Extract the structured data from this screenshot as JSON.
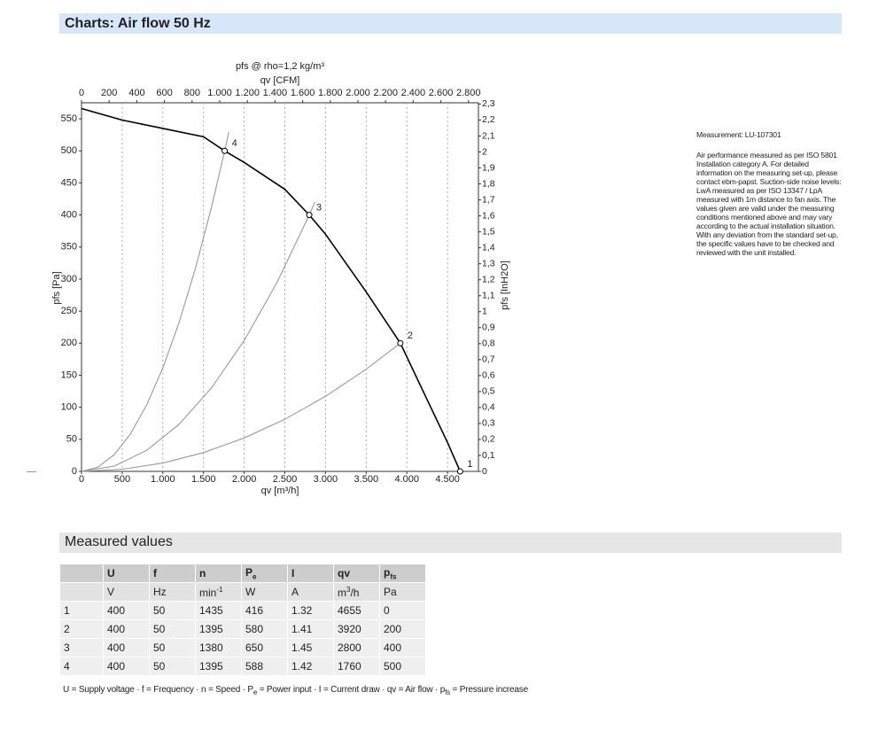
{
  "header": {
    "title": "Charts: Air flow 50 Hz"
  },
  "chart_data": {
    "type": "line",
    "title": "pfs @ rho=1,2 kg/m³",
    "x_label": "qv [m³/h]",
    "x2_label": "qv [CFM]",
    "y_label": "pfs [Pa]",
    "y2_label": "pfs [InH2O]",
    "xlim": [
      0,
      4880
    ],
    "x2lim": [
      0,
      2872
    ],
    "ylim": [
      0,
      575
    ],
    "y2lim": [
      0,
      2.308
    ],
    "xticks": [
      0,
      500,
      {
        "value": 1000,
        "label": "1.000"
      },
      {
        "value": 1500,
        "label": "1.500"
      },
      {
        "value": 2000,
        "label": "2.000"
      },
      {
        "value": 2500,
        "label": "2.500"
      },
      {
        "value": 3000,
        "label": "3.000"
      },
      {
        "value": 3500,
        "label": "3.500"
      },
      {
        "value": 4000,
        "label": "4.000"
      },
      {
        "value": 4500,
        "label": "4.500"
      }
    ],
    "x2ticks": [
      0,
      200,
      400,
      600,
      800,
      {
        "value": 1000,
        "label": "1.000"
      },
      {
        "value": 1200,
        "label": "1.200"
      },
      {
        "value": 1400,
        "label": "1.400"
      },
      {
        "value": 1600,
        "label": "1.600"
      },
      {
        "value": 1800,
        "label": "1.800"
      },
      {
        "value": 2000,
        "label": "2.000"
      },
      {
        "value": 2200,
        "label": "2.200"
      },
      {
        "value": 2400,
        "label": "2.400"
      },
      {
        "value": 2600,
        "label": "2.600"
      },
      {
        "value": 2800,
        "label": "2.800"
      }
    ],
    "yticks": [
      0,
      50,
      100,
      150,
      200,
      250,
      300,
      350,
      400,
      450,
      500,
      550
    ],
    "y2ticks": [
      0,
      {
        "value": 0.1,
        "label": "0,1"
      },
      {
        "value": 0.2,
        "label": "0,2"
      },
      {
        "value": 0.3,
        "label": "0,3"
      },
      {
        "value": 0.4,
        "label": "0,4"
      },
      {
        "value": 0.5,
        "label": "0,5"
      },
      {
        "value": 0.6,
        "label": "0,6"
      },
      {
        "value": 0.7,
        "label": "0,7"
      },
      {
        "value": 0.8,
        "label": "0,8"
      },
      {
        "value": 0.9,
        "label": "0,9"
      },
      1,
      {
        "value": 1.1,
        "label": "1,1"
      },
      {
        "value": 1.2,
        "label": "1,2"
      },
      {
        "value": 1.3,
        "label": "1,3"
      },
      {
        "value": 1.4,
        "label": "1,4"
      },
      {
        "value": 1.5,
        "label": "1,5"
      },
      {
        "value": 1.6,
        "label": "1,6"
      },
      {
        "value": 1.7,
        "label": "1,7"
      },
      {
        "value": 1.8,
        "label": "1,8"
      },
      {
        "value": 1.9,
        "label": "1,9"
      },
      2,
      {
        "value": 2.1,
        "label": "2,1"
      },
      {
        "value": 2.2,
        "label": "2,2"
      },
      {
        "value": 2.3,
        "label": "2,3"
      }
    ],
    "grid": "x",
    "series": [
      {
        "color": "#000000",
        "x": [
          0,
          500,
          1000,
          1500,
          1760,
          2000,
          2500,
          2800,
          3000,
          3500,
          3920,
          4200,
          4500,
          4655
        ],
        "values": [
          566,
          548,
          535,
          522,
          500,
          482,
          440,
          400,
          370,
          280,
          200,
          125,
          45,
          0
        ]
      },
      {
        "color": "#999999",
        "x": [
          0,
          200,
          400,
          600,
          800,
          1000,
          1200,
          1400,
          1600,
          1760,
          1810
        ],
        "values": [
          0,
          6.5,
          25.8,
          58.1,
          103.3,
          161.4,
          232.4,
          316.4,
          413.2,
          500,
          529
        ]
      },
      {
        "color": "#999999",
        "x": [
          0,
          400,
          800,
          1200,
          1600,
          2000,
          2400,
          2800,
          2870
        ],
        "values": [
          0,
          8.2,
          32.7,
          73.5,
          130.6,
          204.1,
          293.9,
          400,
          420
        ]
      },
      {
        "color": "#999999",
        "x": [
          0,
          500,
          1000,
          1500,
          2000,
          2500,
          3000,
          3500,
          3920
        ],
        "values": [
          0,
          3.3,
          13,
          29.3,
          52.1,
          81.3,
          117.1,
          159.4,
          200
        ]
      }
    ],
    "points": [
      {
        "label": "1",
        "x": 4655,
        "y": 0
      },
      {
        "label": "2",
        "x": 3920,
        "y": 200
      },
      {
        "label": "3",
        "x": 2800,
        "y": 400
      },
      {
        "label": "4",
        "x": 1760,
        "y": 500
      }
    ]
  },
  "notes": {
    "measurement": "Measurement: LU-107301",
    "text": "Air performance measured as per ISO 5801 Installation category A. For detailed information on the measuring set-up, please contact ebm-papst. Suction-side noise levels: LwA measured as per ISO 13347 / LpA measured with 1m distance to fan axis. The values given are valid under the measuring conditions mentioned above and may vary according to the actual installation situation. With any deviation from the standard set-up, the specific values have to be checked and reviewed with the unit installed."
  },
  "measured": {
    "title": "Measured values",
    "header": [
      "U",
      "f",
      "n",
      {
        "text": "P",
        "sub": "e"
      },
      "I",
      "qv",
      {
        "text": "p",
        "sub": "fs"
      }
    ],
    "units": [
      "V",
      "Hz",
      {
        "text": "min",
        "sup": "-1"
      },
      "W",
      "A",
      {
        "text": "m",
        "sup": "3",
        "after": "/h"
      },
      "Pa"
    ],
    "rows": [
      [
        1,
        400,
        50,
        1435,
        416,
        1.32,
        4655,
        0
      ],
      [
        2,
        400,
        50,
        1395,
        580,
        1.41,
        3920,
        200
      ],
      [
        3,
        400,
        50,
        1380,
        650,
        1.45,
        2800,
        400
      ],
      [
        4,
        400,
        50,
        1395,
        588,
        1.42,
        1760,
        500
      ]
    ],
    "footnote": [
      {
        "text": "U = Supply voltage · f = Frequency · n = Speed · P"
      },
      {
        "sub": "e"
      },
      {
        "text": " = Power input · I = Current draw · qv = Air flow · p"
      },
      {
        "sub": "fs"
      },
      {
        "text": " = Pressure increase"
      }
    ]
  }
}
